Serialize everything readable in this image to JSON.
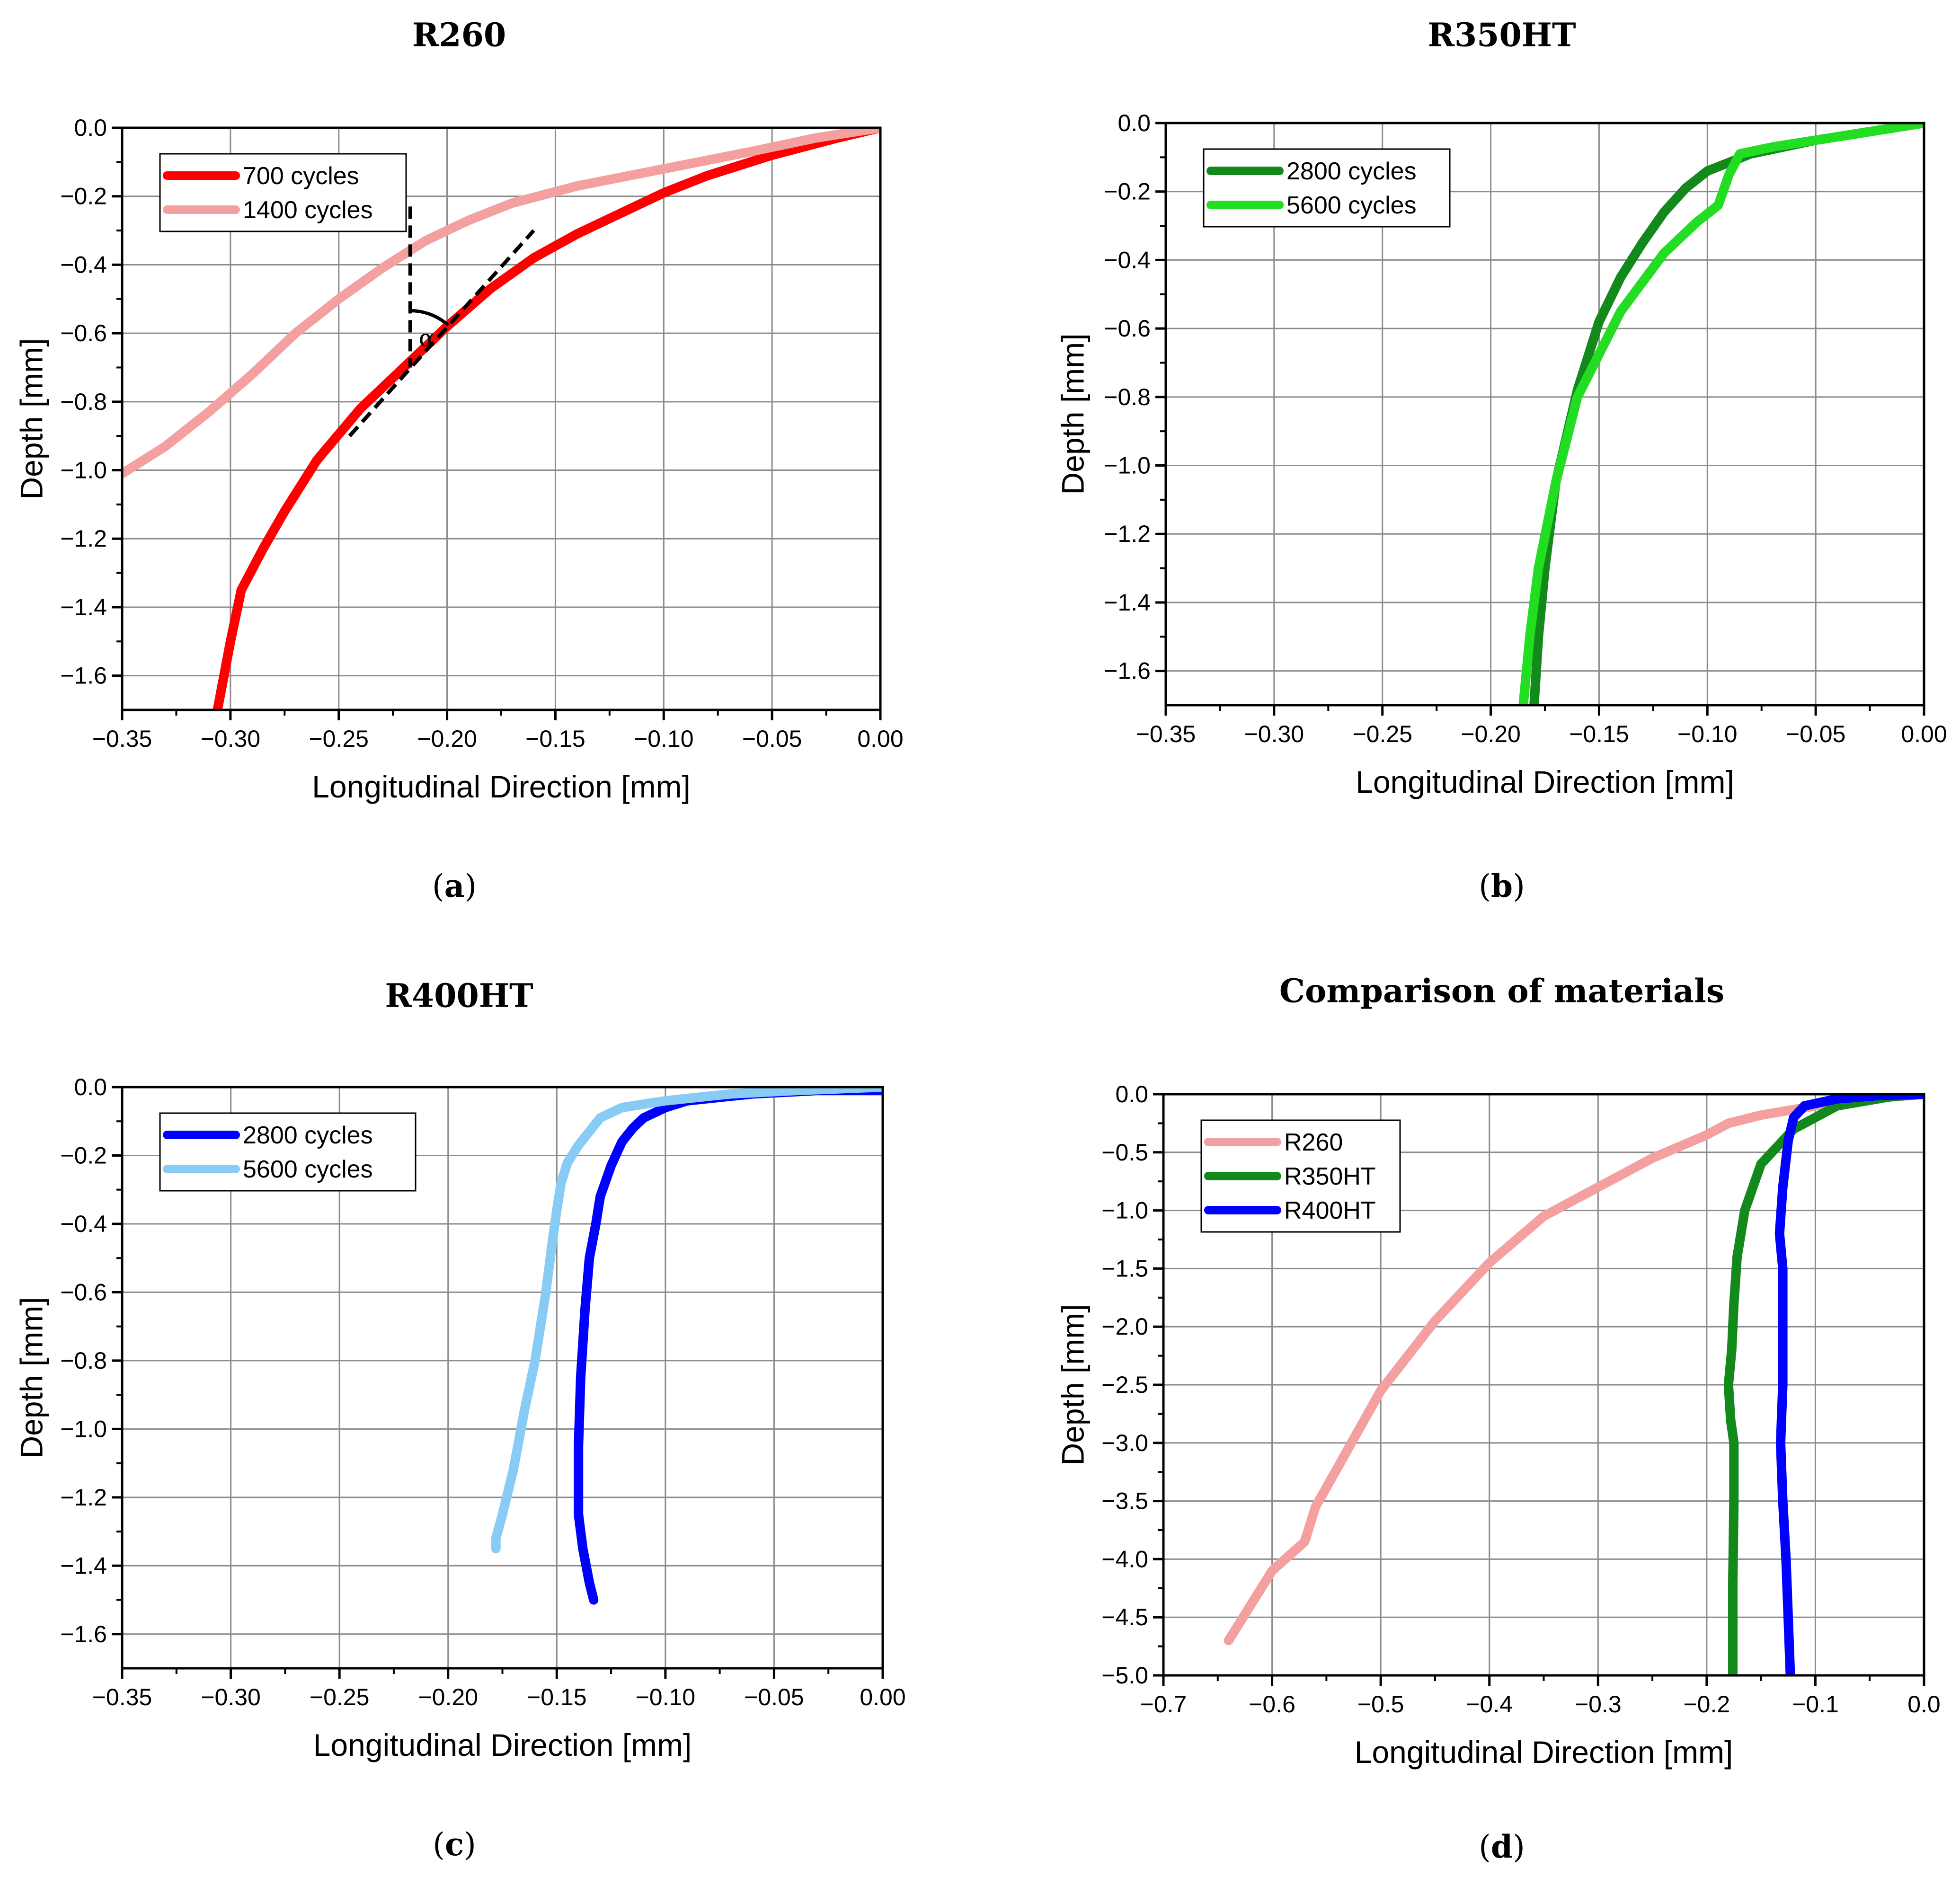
{
  "chart_data": [
    {
      "id": "a",
      "type": "line",
      "title": "R260",
      "caption": "a",
      "xlabel": "Longitudinal Direction [mm]",
      "ylabel": "Depth [mm]",
      "xlim": [
        -0.35,
        0.0
      ],
      "ylim": [
        -1.7,
        0.0
      ],
      "xticks": [
        -0.35,
        -0.3,
        -0.25,
        -0.2,
        -0.15,
        -0.1,
        -0.05,
        0.0
      ],
      "xtick_labels": [
        "−0.35",
        "−0.30",
        "−0.25",
        "−0.20",
        "−0.15",
        "−0.10",
        "−0.05",
        "0.00"
      ],
      "yticks": [
        0.0,
        -0.2,
        -0.4,
        -0.6,
        -0.8,
        -1.0,
        -1.2,
        -1.4,
        -1.6
      ],
      "ytick_labels": [
        "0.0",
        "−0.2",
        "−0.4",
        "−0.6",
        "−0.8",
        "−1.0",
        "−1.2",
        "−1.4",
        "−1.6"
      ],
      "grid": true,
      "legend": "top-left",
      "series": [
        {
          "name": "700 cycles",
          "color": "#ff0000",
          "x": [
            0.0,
            -0.02,
            -0.05,
            -0.08,
            -0.1,
            -0.12,
            -0.14,
            -0.16,
            -0.18,
            -0.2,
            -0.22,
            -0.24,
            -0.26,
            -0.275,
            -0.285,
            -0.295,
            -0.3,
            -0.306
          ],
          "y": [
            0.0,
            -0.03,
            -0.08,
            -0.14,
            -0.19,
            -0.25,
            -0.31,
            -0.38,
            -0.47,
            -0.58,
            -0.7,
            -0.82,
            -0.97,
            -1.12,
            -1.23,
            -1.35,
            -1.5,
            -1.7
          ]
        },
        {
          "name": "1400 cycles",
          "color": "#f4a0a0",
          "x": [
            0.0,
            -0.03,
            -0.06,
            -0.1,
            -0.14,
            -0.17,
            -0.19,
            -0.21,
            -0.23,
            -0.25,
            -0.27,
            -0.29,
            -0.31,
            -0.33,
            -0.35
          ],
          "y": [
            0.0,
            -0.03,
            -0.07,
            -0.12,
            -0.17,
            -0.22,
            -0.27,
            -0.33,
            -0.41,
            -0.5,
            -0.6,
            -0.72,
            -0.83,
            -0.93,
            -1.01
          ]
        }
      ],
      "annotations": {
        "symbol": "α",
        "tangent_line": {
          "x": [
            -0.245,
            -0.16
          ],
          "y": [
            -0.9,
            -0.3
          ]
        },
        "vertical_line": {
          "x": [
            -0.217,
            -0.217
          ],
          "y": [
            -0.23,
            -0.7
          ]
        },
        "arc_center": {
          "x": -0.217,
          "y": -0.7
        }
      }
    },
    {
      "id": "b",
      "type": "line",
      "title": "R350HT",
      "caption": "b",
      "xlabel": "Longitudinal Direction [mm]",
      "ylabel": "Depth [mm]",
      "xlim": [
        -0.35,
        0.0
      ],
      "ylim": [
        -1.7,
        0.0
      ],
      "xticks": [
        -0.35,
        -0.3,
        -0.25,
        -0.2,
        -0.15,
        -0.1,
        -0.05,
        0.0
      ],
      "xtick_labels": [
        "−0.35",
        "−0.30",
        "−0.25",
        "−0.20",
        "−0.15",
        "−0.10",
        "−0.05",
        "0.00"
      ],
      "yticks": [
        0.0,
        -0.2,
        -0.4,
        -0.6,
        -0.8,
        -1.0,
        -1.2,
        -1.4,
        -1.6
      ],
      "ytick_labels": [
        "0.0",
        "−0.2",
        "−0.4",
        "−0.6",
        "−0.8",
        "−1.0",
        "−1.2",
        "−1.4",
        "−1.6"
      ],
      "grid": true,
      "legend": "top-left",
      "series": [
        {
          "name": "2800 cycles",
          "color": "#13891b",
          "x": [
            0.0,
            -0.02,
            -0.05,
            -0.08,
            -0.1,
            -0.11,
            -0.12,
            -0.13,
            -0.14,
            -0.15,
            -0.16,
            -0.17,
            -0.175,
            -0.178,
            -0.18
          ],
          "y": [
            0.0,
            -0.02,
            -0.05,
            -0.09,
            -0.14,
            -0.19,
            -0.26,
            -0.35,
            -0.45,
            -0.58,
            -0.78,
            -1.05,
            -1.3,
            -1.5,
            -1.7
          ]
        },
        {
          "name": "5600 cycles",
          "color": "#22dd22",
          "x": [
            0.0,
            -0.02,
            -0.05,
            -0.07,
            -0.085,
            -0.09,
            -0.095,
            -0.105,
            -0.12,
            -0.14,
            -0.16,
            -0.17,
            -0.178,
            -0.182,
            -0.185
          ],
          "y": [
            0.0,
            -0.02,
            -0.05,
            -0.07,
            -0.09,
            -0.15,
            -0.24,
            -0.29,
            -0.38,
            -0.55,
            -0.8,
            -1.05,
            -1.3,
            -1.5,
            -1.7
          ]
        }
      ]
    },
    {
      "id": "c",
      "type": "line",
      "title": "R400HT",
      "caption": "c",
      "xlabel": "Longitudinal Direction [mm]",
      "ylabel": "Depth [mm]",
      "xlim": [
        -0.35,
        0.0
      ],
      "ylim": [
        -1.7,
        0.0
      ],
      "xticks": [
        -0.35,
        -0.3,
        -0.25,
        -0.2,
        -0.15,
        -0.1,
        -0.05,
        0.0
      ],
      "xtick_labels": [
        "−0.35",
        "−0.30",
        "−0.25",
        "−0.20",
        "−0.15",
        "−0.10",
        "−0.05",
        "0.00"
      ],
      "yticks": [
        0.0,
        -0.2,
        -0.4,
        -0.6,
        -0.8,
        -1.0,
        -1.2,
        -1.4,
        -1.6
      ],
      "ytick_labels": [
        "0.0",
        "−0.2",
        "−0.4",
        "−0.6",
        "−0.8",
        "−1.0",
        "−1.2",
        "−1.4",
        "−1.6"
      ],
      "grid": true,
      "legend": "top-left",
      "series": [
        {
          "name": "2800 cycles",
          "color": "#0000ff",
          "x": [
            0.0,
            -0.03,
            -0.06,
            -0.09,
            -0.1,
            -0.11,
            -0.115,
            -0.12,
            -0.125,
            -0.13,
            -0.132,
            -0.135,
            -0.137,
            -0.139,
            -0.14,
            -0.14,
            -0.138,
            -0.135,
            -0.133
          ],
          "y": [
            -0.01,
            -0.01,
            -0.02,
            -0.04,
            -0.06,
            -0.09,
            -0.12,
            -0.16,
            -0.23,
            -0.32,
            -0.4,
            -0.5,
            -0.65,
            -0.85,
            -1.05,
            -1.25,
            -1.35,
            -1.45,
            -1.5
          ]
        },
        {
          "name": "5600 cycles",
          "color": "#88ccf5",
          "x": [
            0.0,
            -0.04,
            -0.07,
            -0.1,
            -0.12,
            -0.13,
            -0.135,
            -0.14,
            -0.145,
            -0.148,
            -0.15,
            -0.152,
            -0.155,
            -0.16,
            -0.165,
            -0.17,
            -0.175,
            -0.178,
            -0.178
          ],
          "y": [
            0.0,
            -0.01,
            -0.02,
            -0.04,
            -0.06,
            -0.09,
            -0.13,
            -0.17,
            -0.22,
            -0.28,
            -0.36,
            -0.45,
            -0.6,
            -0.8,
            -0.95,
            -1.12,
            -1.25,
            -1.32,
            -1.35
          ]
        }
      ]
    },
    {
      "id": "d",
      "type": "line",
      "title": "Comparison of materials",
      "caption": "d",
      "xlabel": "Longitudinal Direction [mm]",
      "ylabel": "Depth [mm]",
      "xlim": [
        -0.7,
        0.0
      ],
      "ylim": [
        -5.0,
        0.0
      ],
      "xticks": [
        -0.7,
        -0.6,
        -0.5,
        -0.4,
        -0.3,
        -0.2,
        -0.1,
        0.0
      ],
      "xtick_labels": [
        "−0.7",
        "−0.6",
        "−0.5",
        "−0.4",
        "−0.3",
        "−0.2",
        "−0.1",
        "0.0"
      ],
      "yticks": [
        0.0,
        -0.5,
        -1.0,
        -1.5,
        -2.0,
        -2.5,
        -3.0,
        -3.5,
        -4.0,
        -4.5,
        -5.0
      ],
      "ytick_labels": [
        "0.0",
        "−0.5",
        "−1.0",
        "−1.5",
        "−2.0",
        "−2.5",
        "−3.0",
        "−3.5",
        "−4.0",
        "−4.5",
        "−5.0"
      ],
      "grid": true,
      "legend": "top-left",
      "series": [
        {
          "name": "R260",
          "color": "#f4a0a0",
          "x": [
            0.0,
            -0.05,
            -0.1,
            -0.15,
            -0.18,
            -0.2,
            -0.25,
            -0.3,
            -0.35,
            -0.4,
            -0.45,
            -0.5,
            -0.53,
            -0.56,
            -0.565,
            -0.57,
            -0.6,
            -0.62,
            -0.64
          ],
          "y": [
            0.0,
            -0.04,
            -0.1,
            -0.18,
            -0.25,
            -0.35,
            -0.55,
            -0.8,
            -1.05,
            -1.45,
            -1.95,
            -2.55,
            -3.05,
            -3.55,
            -3.7,
            -3.85,
            -4.1,
            -4.4,
            -4.7
          ]
        },
        {
          "name": "R350HT",
          "color": "#13891b",
          "x": [
            0.0,
            -0.03,
            -0.08,
            -0.12,
            -0.15,
            -0.165,
            -0.172,
            -0.175,
            -0.177,
            -0.18,
            -0.178,
            -0.175,
            -0.175,
            -0.176,
            -0.176
          ],
          "y": [
            0.0,
            -0.02,
            -0.1,
            -0.3,
            -0.6,
            -1.0,
            -1.4,
            -1.8,
            -2.2,
            -2.5,
            -2.8,
            -3.0,
            -3.5,
            -4.2,
            -5.0
          ]
        },
        {
          "name": "R400HT",
          "color": "#0000ff",
          "x": [
            0.0,
            -0.04,
            -0.08,
            -0.11,
            -0.12,
            -0.125,
            -0.13,
            -0.133,
            -0.13,
            -0.13,
            -0.13,
            -0.132,
            -0.13,
            -0.127,
            -0.125,
            -0.123
          ],
          "y": [
            0.0,
            -0.01,
            -0.04,
            -0.1,
            -0.2,
            -0.4,
            -0.8,
            -1.2,
            -1.5,
            -2.0,
            -2.5,
            -3.0,
            -3.5,
            -4.0,
            -4.5,
            -5.0
          ]
        }
      ]
    }
  ]
}
